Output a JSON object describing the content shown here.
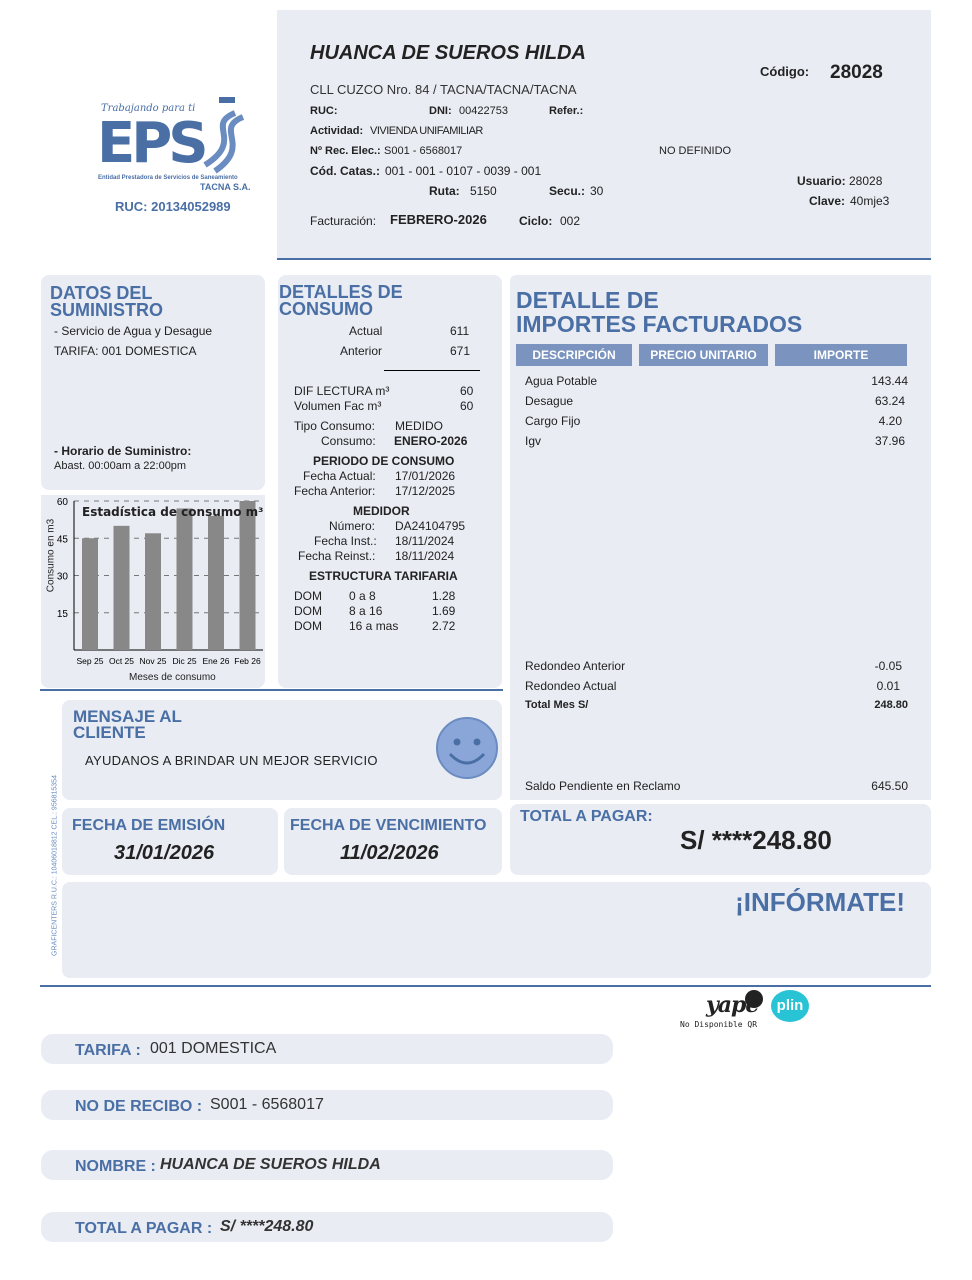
{
  "header": {
    "name": "HUANCA DE SUEROS HILDA",
    "address": "CLL CUZCO Nro. 84 / TACNA/TACNA/TACNA",
    "ruc_label": "RUC:",
    "ruc": "",
    "dni_label": "DNI:",
    "dni": "00422753",
    "refer_label": "Refer.:",
    "actividad_label": "Actividad:",
    "actividad": "VIVIENDA UNIFAMILIAR",
    "rec_label": "Nº Rec. Elec.:",
    "rec": "S001 - 6568017",
    "no_definido": "NO DEFINIDO",
    "catas_label": "Cód. Catas.:",
    "catas": "001 - 001 - 0107 - 0039 - 001",
    "ruta_label": "Ruta:",
    "ruta": "5150",
    "secu_label": "Secu.:",
    "secu": "30",
    "fact_label": "Facturación:",
    "fact": "FEBRERO-2026",
    "ciclo_label": "Ciclo:",
    "ciclo": "002",
    "codigo_label": "Código:",
    "codigo": "28028",
    "usuario_label": "Usuario:",
    "usuario": "28028",
    "clave_label": "Clave:",
    "clave": "40mje3"
  },
  "logo": {
    "tagline": "Trabajando para ti",
    "brand": "EPS",
    "entity": "Entidad Prestadora de Servicios de Saneamiento",
    "city": "TACNA S.A.",
    "ruc": "RUC: 20134052989",
    "color": "#4a6fa5"
  },
  "suministro": {
    "title1": "DATOS DEL",
    "title2": "SUMINISTRO",
    "servicio": "- Servicio de Agua y Desague",
    "tarifa": "TARIFA: 001 DOMESTICA",
    "horario_label": "- Horario de Suministro:",
    "horario": "Abast. 00:00am a 22:00pm"
  },
  "chart_data": {
    "type": "bar",
    "title": "Estadística de consumo m³",
    "xlabel": "Meses de consumo",
    "ylabel": "Consumo en m3",
    "categories": [
      "Sep 25",
      "Oct 25",
      "Nov 25",
      "Dic 25",
      "Ene 26",
      "Feb 26"
    ],
    "values": [
      45,
      50,
      47,
      57,
      54,
      60
    ],
    "ylim": [
      0,
      60
    ],
    "yticks": [
      15,
      30,
      45,
      60
    ],
    "grid": true,
    "color": "#888888"
  },
  "consumo": {
    "title1": "DETALLES DE",
    "title2": "CONSUMO",
    "actual_label": "Actual",
    "actual": "611",
    "anterior_label": "Anterior",
    "anterior": "671",
    "dif_label": "DIF LECTURA m³",
    "dif": "60",
    "vol_label": "Volumen Fac m³",
    "vol": "60",
    "tipo_label": "Tipo Consumo:",
    "tipo": "MEDIDO",
    "cons_label": "Consumo:",
    "cons": "ENERO-2026",
    "periodo_title": "PERIODO DE CONSUMO",
    "f_actual_label": "Fecha Actual:",
    "f_actual": "17/01/2026",
    "f_anterior_label": "Fecha Anterior:",
    "f_anterior": "17/12/2025",
    "medidor_title": "MEDIDOR",
    "numero_label": "Número:",
    "numero": "DA24104795",
    "f_inst_label": "Fecha Inst.:",
    "f_inst": "18/11/2024",
    "f_reinst_label": "Fecha Reinst.:",
    "f_reinst": "18/11/2024",
    "estructura_title": "ESTRUCTURA TARIFARIA",
    "tarifas": [
      {
        "cat": "DOM",
        "rango": "0 a 8",
        "precio": "1.28"
      },
      {
        "cat": "DOM",
        "rango": "8 a 16",
        "precio": "1.69"
      },
      {
        "cat": "DOM",
        "rango": "16 a mas",
        "precio": "2.72"
      }
    ]
  },
  "importes": {
    "title1": "DETALLE DE",
    "title2": "IMPORTES FACTURADOS",
    "headers": [
      "DESCRIPCIÓN",
      "PRECIO UNITARIO",
      "IMPORTE"
    ],
    "items": [
      {
        "desc": "Agua Potable",
        "importe": "143.44"
      },
      {
        "desc": "Desague",
        "importe": "63.24"
      },
      {
        "desc": "Cargo Fijo",
        "importe": "4.20"
      },
      {
        "desc": "Igv",
        "importe": "37.96"
      }
    ],
    "redondeo_ant_label": "Redondeo Anterior",
    "redondeo_ant": "-0.05",
    "redondeo_act_label": "Redondeo Actual",
    "redondeo_act": "0.01",
    "total_mes_label": "Total Mes S/",
    "total_mes": "248.80",
    "saldo_label": "Saldo Pendiente en Reclamo",
    "saldo": "645.50"
  },
  "mensaje": {
    "title1": "MENSAJE AL",
    "title2": "CLIENTE",
    "text": "AYUDANOS A BRINDAR UN MEJOR SERVICIO"
  },
  "fechas": {
    "emision_label": "FECHA DE EMISIÓN",
    "emision": "31/01/2026",
    "venc_label": "FECHA DE VENCIMIENTO",
    "venc": "11/02/2026"
  },
  "total": {
    "label": "TOTAL A PAGAR:",
    "value": "S/ ****248.80"
  },
  "informate": "¡INFÓRMATE!",
  "printer": "GRAFICENTERS R.U.C.: 10406018812 CEL.: 956815354",
  "payment": {
    "yape": "yape",
    "plin": "plin",
    "qr_note": "No Disponible QR"
  },
  "footer": [
    {
      "label": "TARIFA :",
      "value": "001 DOMESTICA"
    },
    {
      "label": "NO DE RECIBO :",
      "value": "S001 - 6568017"
    },
    {
      "label": "NOMBRE :",
      "value": "HUANCA DE SUEROS HILDA"
    },
    {
      "label": "TOTAL A PAGAR :",
      "value": "S/ ****248.80"
    }
  ]
}
